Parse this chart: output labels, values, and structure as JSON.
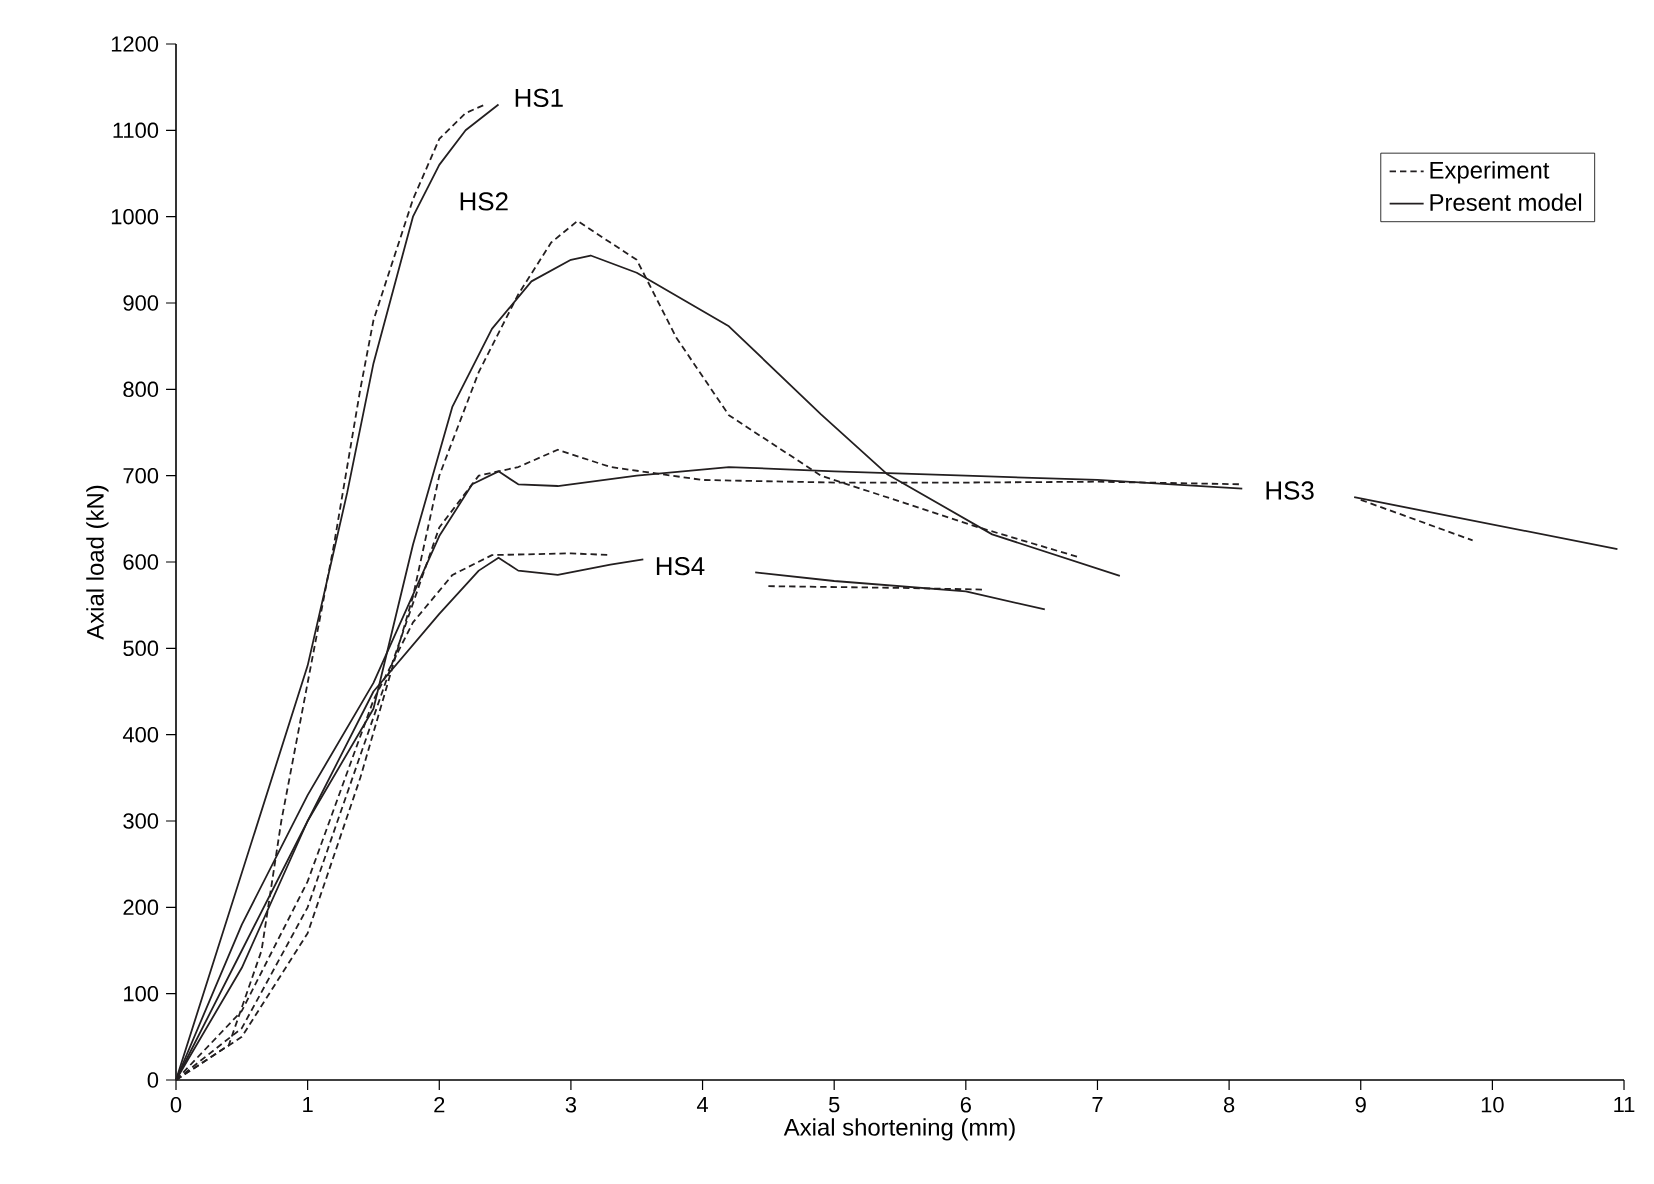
{
  "chart_data": {
    "type": "line",
    "xlabel": "Axial shortening (mm)",
    "ylabel": "Axial load (kN)",
    "xlim": [
      0,
      11
    ],
    "ylim": [
      0,
      1200
    ],
    "xticks": [
      0,
      1,
      2,
      3,
      4,
      5,
      6,
      7,
      8,
      9,
      10,
      11
    ],
    "yticks": [
      0,
      100,
      200,
      300,
      400,
      500,
      600,
      700,
      800,
      900,
      1000,
      1100,
      1200
    ],
    "grid": false,
    "legend": "top right",
    "marker": "none",
    "annotations": [
      "HS1",
      "HS2",
      "HS3",
      "HS4"
    ],
    "series": [
      {
        "name": "Experiment",
        "color": "#231f20",
        "line_style": "dashed",
        "x": [
          0,
          0.4,
          0.65,
          0.8,
          1.0,
          1.2,
          1.4,
          1.5,
          1.65,
          1.8,
          2.0,
          2.2,
          2.35
        ],
        "values": [
          0,
          40,
          150,
          300,
          460,
          620,
          800,
          880,
          950,
          1020,
          1090,
          1120,
          1130
        ]
      },
      {
        "name": "Present model",
        "color": "#231f20",
        "line_style": "solid",
        "x": [
          0,
          0.5,
          1.0,
          1.3,
          1.5,
          1.8,
          2.0,
          2.2,
          2.45
        ],
        "values": [
          0,
          240,
          480,
          680,
          830,
          1000,
          1060,
          1100,
          1130
        ]
      },
      {
        "color": "#231f20",
        "line_style": "dashed",
        "x": [
          0,
          0.5,
          1.0,
          1.4,
          1.8,
          2.0,
          2.3,
          2.6,
          2.85,
          3.05,
          3.3,
          3.5,
          3.8,
          4.2,
          4.9,
          6.1,
          6.87
        ],
        "values": [
          0,
          50,
          170,
          350,
          560,
          700,
          820,
          910,
          970,
          995,
          970,
          950,
          860,
          770,
          700,
          640,
          605
        ]
      },
      {
        "color": "#231f20",
        "line_style": "solid",
        "x": [
          0,
          0.5,
          1.0,
          1.5,
          1.8,
          2.1,
          2.4,
          2.7,
          3.0,
          3.15,
          3.5,
          4.2,
          4.9,
          5.4,
          6.2,
          7.17
        ],
        "values": [
          0,
          150,
          300,
          430,
          620,
          780,
          870,
          925,
          950,
          955,
          935,
          873,
          771,
          702,
          632,
          584
        ]
      },
      {
        "color": "#231f20",
        "line_style": "dashed",
        "x": [
          0,
          0.5,
          1.0,
          1.5,
          2.0,
          2.3,
          2.6,
          2.9,
          3.3,
          4,
          5,
          6,
          7,
          8.1,
          8.6,
          9.0,
          9.85
        ],
        "values": [
          0,
          60,
          200,
          420,
          640,
          700,
          710,
          730,
          710,
          695,
          692,
          692,
          693,
          690,
          null,
          672,
          625
        ]
      },
      {
        "color": "#231f20",
        "line_style": "solid",
        "x": [
          0,
          0.5,
          1,
          1.5,
          2,
          2.25,
          2.45,
          2.6,
          2.9,
          3.5,
          4.2,
          5,
          6,
          7,
          8.1,
          8.5,
          8.95,
          10.95
        ],
        "values": [
          0,
          180,
          330,
          460,
          630,
          690,
          705,
          690,
          688,
          700,
          710,
          705,
          700,
          695,
          685,
          null,
          675,
          615
        ]
      },
      {
        "color": "#231f20",
        "line_style": "dashed",
        "x": [
          0,
          0.5,
          1,
          1.5,
          1.8,
          2.1,
          2.4,
          3,
          3.3,
          3.9,
          4.5,
          5.5,
          6.15
        ],
        "values": [
          0,
          80,
          230,
          440,
          530,
          585,
          608,
          610,
          608,
          null,
          572,
          570,
          568
        ]
      },
      {
        "color": "#231f20",
        "line_style": "solid",
        "x": [
          0,
          0.5,
          1,
          1.5,
          2,
          2.3,
          2.45,
          2.6,
          2.9,
          3.3,
          3.55,
          3.9,
          4.4,
          5,
          6,
          6.6
        ],
        "values": [
          0,
          130,
          300,
          450,
          540,
          590,
          605,
          590,
          585,
          597,
          603,
          null,
          588,
          578,
          566,
          545
        ]
      }
    ]
  }
}
